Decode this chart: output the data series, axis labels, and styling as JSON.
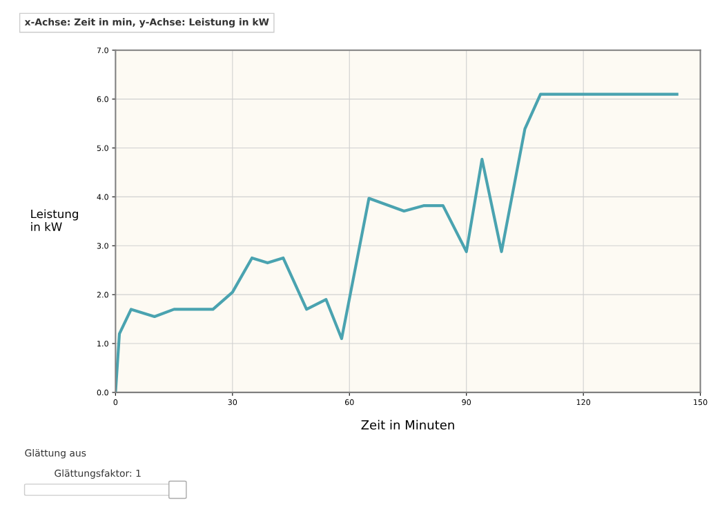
{
  "chart_data": {
    "type": "line",
    "title": "x-Achse: Zeit in min, y-Achse: Leistung in kW",
    "xlabel": "Zeit in Minuten",
    "ylabel": "Leistung\nin kW",
    "x": [
      0,
      1,
      4,
      10,
      15,
      25,
      30,
      35,
      39,
      43,
      49,
      54,
      58,
      65,
      74,
      79,
      84,
      90,
      94,
      99,
      105,
      109,
      144
    ],
    "series": [
      {
        "color": "#4aa3b0",
        "values": [
          0,
          1.2,
          1.7,
          1.55,
          1.7,
          1.7,
          2.05,
          2.75,
          2.65,
          2.75,
          1.7,
          1.9,
          1.1,
          3.97,
          3.71,
          3.82,
          3.82,
          2.88,
          4.77,
          2.88,
          5.39,
          6.1,
          6.1
        ]
      }
    ],
    "xlim": [
      0,
      150
    ],
    "xticks": [
      0,
      30,
      60,
      90,
      120,
      150
    ],
    "ylim": [
      0,
      7
    ],
    "yticks": [
      {
        "value": 0,
        "label": "0.0"
      },
      {
        "value": 1,
        "label": "1.0"
      },
      {
        "value": 2,
        "label": "2.0"
      },
      {
        "value": 3,
        "label": "3.0"
      },
      {
        "value": 4,
        "label": "4.0"
      },
      {
        "value": 5,
        "label": "5.0"
      },
      {
        "value": 6,
        "label": "6.0"
      },
      {
        "value": 7,
        "label": "7.0"
      }
    ],
    "grid": true,
    "marker": "none",
    "line_style": "solid",
    "annotations": [
      "Glättung aus",
      "Glättungsfaktor: 1"
    ]
  }
}
